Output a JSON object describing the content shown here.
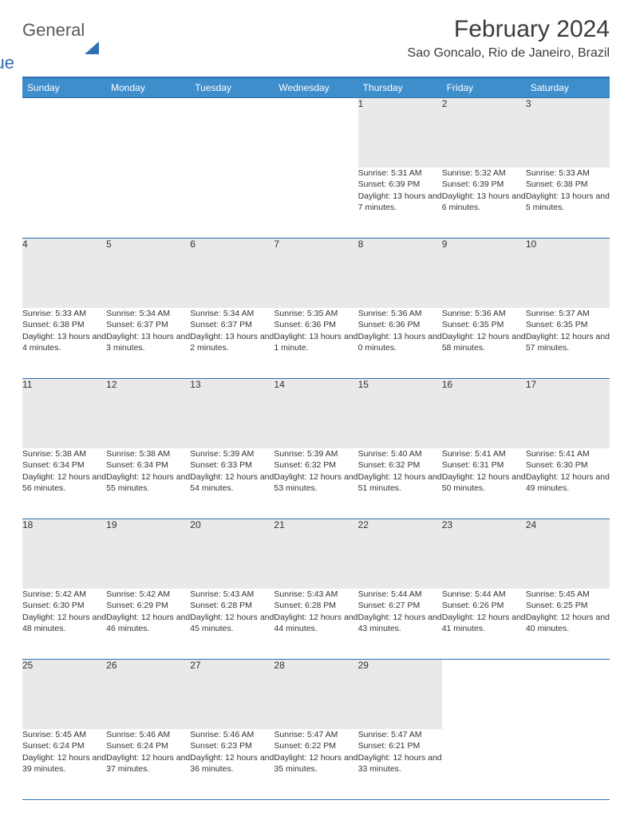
{
  "brand": {
    "part1": "General",
    "part2": "Blue"
  },
  "title": "February 2024",
  "location": "Sao Goncalo, Rio de Janeiro, Brazil",
  "colors": {
    "header_bg": "#3f8ecc",
    "accent": "#2f6fb3",
    "daynum_bg": "#e9e9e9",
    "text": "#333333",
    "background": "#ffffff"
  },
  "weekdays": [
    "Sunday",
    "Monday",
    "Tuesday",
    "Wednesday",
    "Thursday",
    "Friday",
    "Saturday"
  ],
  "weeks": [
    [
      null,
      null,
      null,
      null,
      {
        "n": "1",
        "sunrise": "5:31 AM",
        "sunset": "6:39 PM",
        "daylight": "13 hours and 7 minutes."
      },
      {
        "n": "2",
        "sunrise": "5:32 AM",
        "sunset": "6:39 PM",
        "daylight": "13 hours and 6 minutes."
      },
      {
        "n": "3",
        "sunrise": "5:33 AM",
        "sunset": "6:38 PM",
        "daylight": "13 hours and 5 minutes."
      }
    ],
    [
      {
        "n": "4",
        "sunrise": "5:33 AM",
        "sunset": "6:38 PM",
        "daylight": "13 hours and 4 minutes."
      },
      {
        "n": "5",
        "sunrise": "5:34 AM",
        "sunset": "6:37 PM",
        "daylight": "13 hours and 3 minutes."
      },
      {
        "n": "6",
        "sunrise": "5:34 AM",
        "sunset": "6:37 PM",
        "daylight": "13 hours and 2 minutes."
      },
      {
        "n": "7",
        "sunrise": "5:35 AM",
        "sunset": "6:36 PM",
        "daylight": "13 hours and 1 minute."
      },
      {
        "n": "8",
        "sunrise": "5:36 AM",
        "sunset": "6:36 PM",
        "daylight": "13 hours and 0 minutes."
      },
      {
        "n": "9",
        "sunrise": "5:36 AM",
        "sunset": "6:35 PM",
        "daylight": "12 hours and 58 minutes."
      },
      {
        "n": "10",
        "sunrise": "5:37 AM",
        "sunset": "6:35 PM",
        "daylight": "12 hours and 57 minutes."
      }
    ],
    [
      {
        "n": "11",
        "sunrise": "5:38 AM",
        "sunset": "6:34 PM",
        "daylight": "12 hours and 56 minutes."
      },
      {
        "n": "12",
        "sunrise": "5:38 AM",
        "sunset": "6:34 PM",
        "daylight": "12 hours and 55 minutes."
      },
      {
        "n": "13",
        "sunrise": "5:39 AM",
        "sunset": "6:33 PM",
        "daylight": "12 hours and 54 minutes."
      },
      {
        "n": "14",
        "sunrise": "5:39 AM",
        "sunset": "6:32 PM",
        "daylight": "12 hours and 53 minutes."
      },
      {
        "n": "15",
        "sunrise": "5:40 AM",
        "sunset": "6:32 PM",
        "daylight": "12 hours and 51 minutes."
      },
      {
        "n": "16",
        "sunrise": "5:41 AM",
        "sunset": "6:31 PM",
        "daylight": "12 hours and 50 minutes."
      },
      {
        "n": "17",
        "sunrise": "5:41 AM",
        "sunset": "6:30 PM",
        "daylight": "12 hours and 49 minutes."
      }
    ],
    [
      {
        "n": "18",
        "sunrise": "5:42 AM",
        "sunset": "6:30 PM",
        "daylight": "12 hours and 48 minutes."
      },
      {
        "n": "19",
        "sunrise": "5:42 AM",
        "sunset": "6:29 PM",
        "daylight": "12 hours and 46 minutes."
      },
      {
        "n": "20",
        "sunrise": "5:43 AM",
        "sunset": "6:28 PM",
        "daylight": "12 hours and 45 minutes."
      },
      {
        "n": "21",
        "sunrise": "5:43 AM",
        "sunset": "6:28 PM",
        "daylight": "12 hours and 44 minutes."
      },
      {
        "n": "22",
        "sunrise": "5:44 AM",
        "sunset": "6:27 PM",
        "daylight": "12 hours and 43 minutes."
      },
      {
        "n": "23",
        "sunrise": "5:44 AM",
        "sunset": "6:26 PM",
        "daylight": "12 hours and 41 minutes."
      },
      {
        "n": "24",
        "sunrise": "5:45 AM",
        "sunset": "6:25 PM",
        "daylight": "12 hours and 40 minutes."
      }
    ],
    [
      {
        "n": "25",
        "sunrise": "5:45 AM",
        "sunset": "6:24 PM",
        "daylight": "12 hours and 39 minutes."
      },
      {
        "n": "26",
        "sunrise": "5:46 AM",
        "sunset": "6:24 PM",
        "daylight": "12 hours and 37 minutes."
      },
      {
        "n": "27",
        "sunrise": "5:46 AM",
        "sunset": "6:23 PM",
        "daylight": "12 hours and 36 minutes."
      },
      {
        "n": "28",
        "sunrise": "5:47 AM",
        "sunset": "6:22 PM",
        "daylight": "12 hours and 35 minutes."
      },
      {
        "n": "29",
        "sunrise": "5:47 AM",
        "sunset": "6:21 PM",
        "daylight": "12 hours and 33 minutes."
      },
      null,
      null
    ]
  ],
  "labels": {
    "sunrise": "Sunrise:",
    "sunset": "Sunset:",
    "daylight": "Daylight:"
  }
}
